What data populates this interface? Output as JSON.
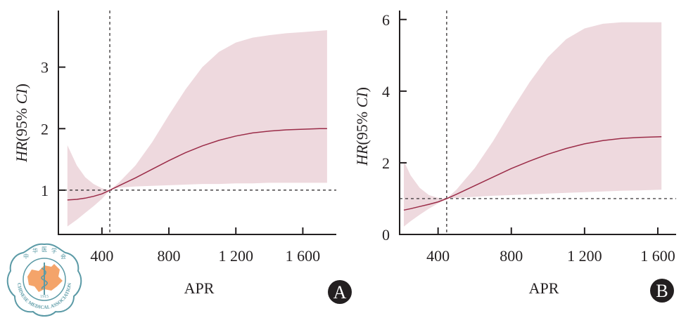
{
  "logo": {
    "name": "Chinese Medical Association",
    "chars": [
      "中",
      "华",
      "医",
      "学",
      "会"
    ],
    "text": "CHINESE MEDICAL ASSOCIATION",
    "year": "1915",
    "ring_color": "#5b9aa6",
    "map_color": "#f4a46a"
  },
  "colors": {
    "band": "#eed9de",
    "line": "#9b2c48",
    "axis": "#231f20",
    "badge_bg": "#231f20"
  },
  "chart_data": [
    {
      "type": "line",
      "panel": "A",
      "title": "",
      "xlabel": "APR",
      "ylabel": "HR(95% CI)",
      "ylabel_italic_part": "HR",
      "ylabel_rest": "(95% ",
      "ylabel_ci": "CI",
      "ylabel_close": ")",
      "xlim": [
        140,
        1800
      ],
      "ylim": [
        0.28,
        3.92
      ],
      "xticks": [
        400,
        800,
        1200,
        1600
      ],
      "xtick_labels": [
        "400",
        "800",
        "1 200",
        "1 600"
      ],
      "yticks": [
        1,
        2,
        3
      ],
      "ytick_labels": [
        "1",
        "2",
        "3"
      ],
      "reference_x": 447,
      "reference_y": 1,
      "grid": false,
      "legend": "none",
      "series": [
        {
          "name": "HR",
          "x": [
            194,
            250,
            300,
            350,
            400,
            447,
            500,
            600,
            700,
            800,
            900,
            1000,
            1100,
            1200,
            1300,
            1400,
            1500,
            1600,
            1700,
            1745
          ],
          "y": [
            0.84,
            0.85,
            0.87,
            0.9,
            0.94,
            1.0,
            1.07,
            1.2,
            1.34,
            1.48,
            1.61,
            1.72,
            1.81,
            1.88,
            1.93,
            1.96,
            1.98,
            1.99,
            2.0,
            2.0
          ],
          "lower": [
            0.41,
            0.52,
            0.63,
            0.74,
            0.86,
            1.0,
            1.04,
            1.06,
            1.07,
            1.08,
            1.09,
            1.1,
            1.1,
            1.11,
            1.11,
            1.12,
            1.12,
            1.12,
            1.12,
            1.12
          ],
          "upper": [
            1.73,
            1.4,
            1.21,
            1.1,
            1.03,
            1.0,
            1.12,
            1.4,
            1.78,
            2.22,
            2.64,
            3.0,
            3.25,
            3.4,
            3.48,
            3.52,
            3.55,
            3.57,
            3.59,
            3.6
          ]
        }
      ],
      "badge": "A"
    },
    {
      "type": "line",
      "panel": "B",
      "title": "",
      "xlabel": "APR",
      "ylabel": "HR(95% CI)",
      "ylabel_italic_part": "HR",
      "ylabel_rest": "(95% ",
      "ylabel_ci": "CI",
      "ylabel_close": ")",
      "xlim": [
        190,
        1700
      ],
      "ylim": [
        0,
        6.25
      ],
      "xticks": [
        400,
        800,
        1200,
        1600
      ],
      "xtick_labels": [
        "400",
        "800",
        "1 200",
        "1 600"
      ],
      "yticks": [
        0,
        2,
        4,
        6
      ],
      "ytick_labels": [
        "0",
        "2",
        "4",
        "6"
      ],
      "reference_x": 447,
      "reference_y": 1,
      "grid": false,
      "legend": "none",
      "series": [
        {
          "name": "HR",
          "x": [
            213,
            250,
            300,
            350,
            400,
            447,
            500,
            600,
            700,
            800,
            900,
            1000,
            1100,
            1200,
            1300,
            1400,
            1500,
            1620
          ],
          "y": [
            0.68,
            0.72,
            0.78,
            0.84,
            0.91,
            1.0,
            1.12,
            1.36,
            1.6,
            1.84,
            2.05,
            2.24,
            2.4,
            2.53,
            2.62,
            2.68,
            2.71,
            2.73
          ],
          "lower": [
            0.22,
            0.37,
            0.55,
            0.72,
            0.87,
            1.0,
            1.02,
            1.05,
            1.08,
            1.1,
            1.12,
            1.14,
            1.16,
            1.18,
            1.2,
            1.22,
            1.23,
            1.25
          ],
          "upper": [
            2.05,
            1.65,
            1.3,
            1.1,
            1.02,
            1.0,
            1.25,
            1.85,
            2.6,
            3.45,
            4.25,
            4.95,
            5.45,
            5.75,
            5.88,
            5.92,
            5.92,
            5.92
          ]
        }
      ],
      "badge": "B"
    }
  ]
}
